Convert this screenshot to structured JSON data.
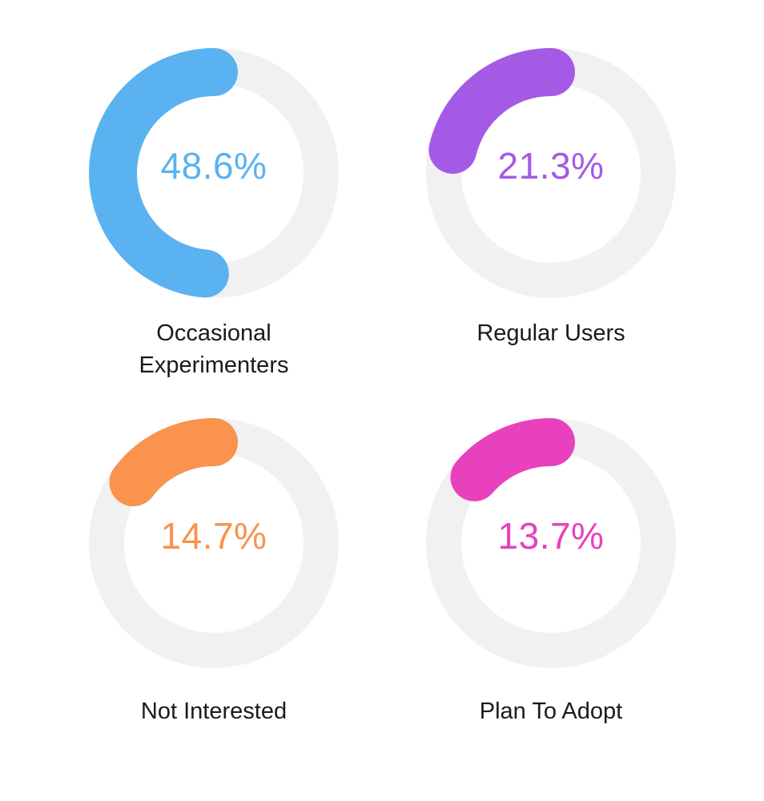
{
  "background_color": "#ffffff",
  "track_color": "#f1f1f2",
  "label_color": "#1a1a1a",
  "charts": [
    {
      "id": "occasional-experimenters",
      "label": "Occasional Experimenters",
      "percent": 48.6,
      "percent_label": "48.6%",
      "color": "#5ab2f1"
    },
    {
      "id": "regular-users",
      "label": "Regular Users",
      "percent": 21.3,
      "percent_label": "21.3%",
      "color": "#a55ae6"
    },
    {
      "id": "not-interested",
      "label": "Not Interested",
      "percent": 14.7,
      "percent_label": "14.7%",
      "color": "#f9934e"
    },
    {
      "id": "plan-to-adopt",
      "label": "Plan To Adopt",
      "percent": 13.7,
      "percent_label": "13.7%",
      "color": "#e940be"
    }
  ],
  "chart_data": {
    "type": "pie",
    "variant": "donut-progress-rings",
    "title": "",
    "categories": [
      "Occasional Experimenters",
      "Regular Users",
      "Not Interested",
      "Plan To Adopt"
    ],
    "values": [
      48.6,
      21.3,
      14.7,
      13.7
    ],
    "unit": "%",
    "colors": [
      "#5ab2f1",
      "#a55ae6",
      "#f9934e",
      "#e940be"
    ],
    "track_color": "#f1f1f2",
    "start_angle": "12-oclock",
    "direction": "counterclockwise",
    "legend_position": "caption-below-each-ring",
    "grid": false
  }
}
